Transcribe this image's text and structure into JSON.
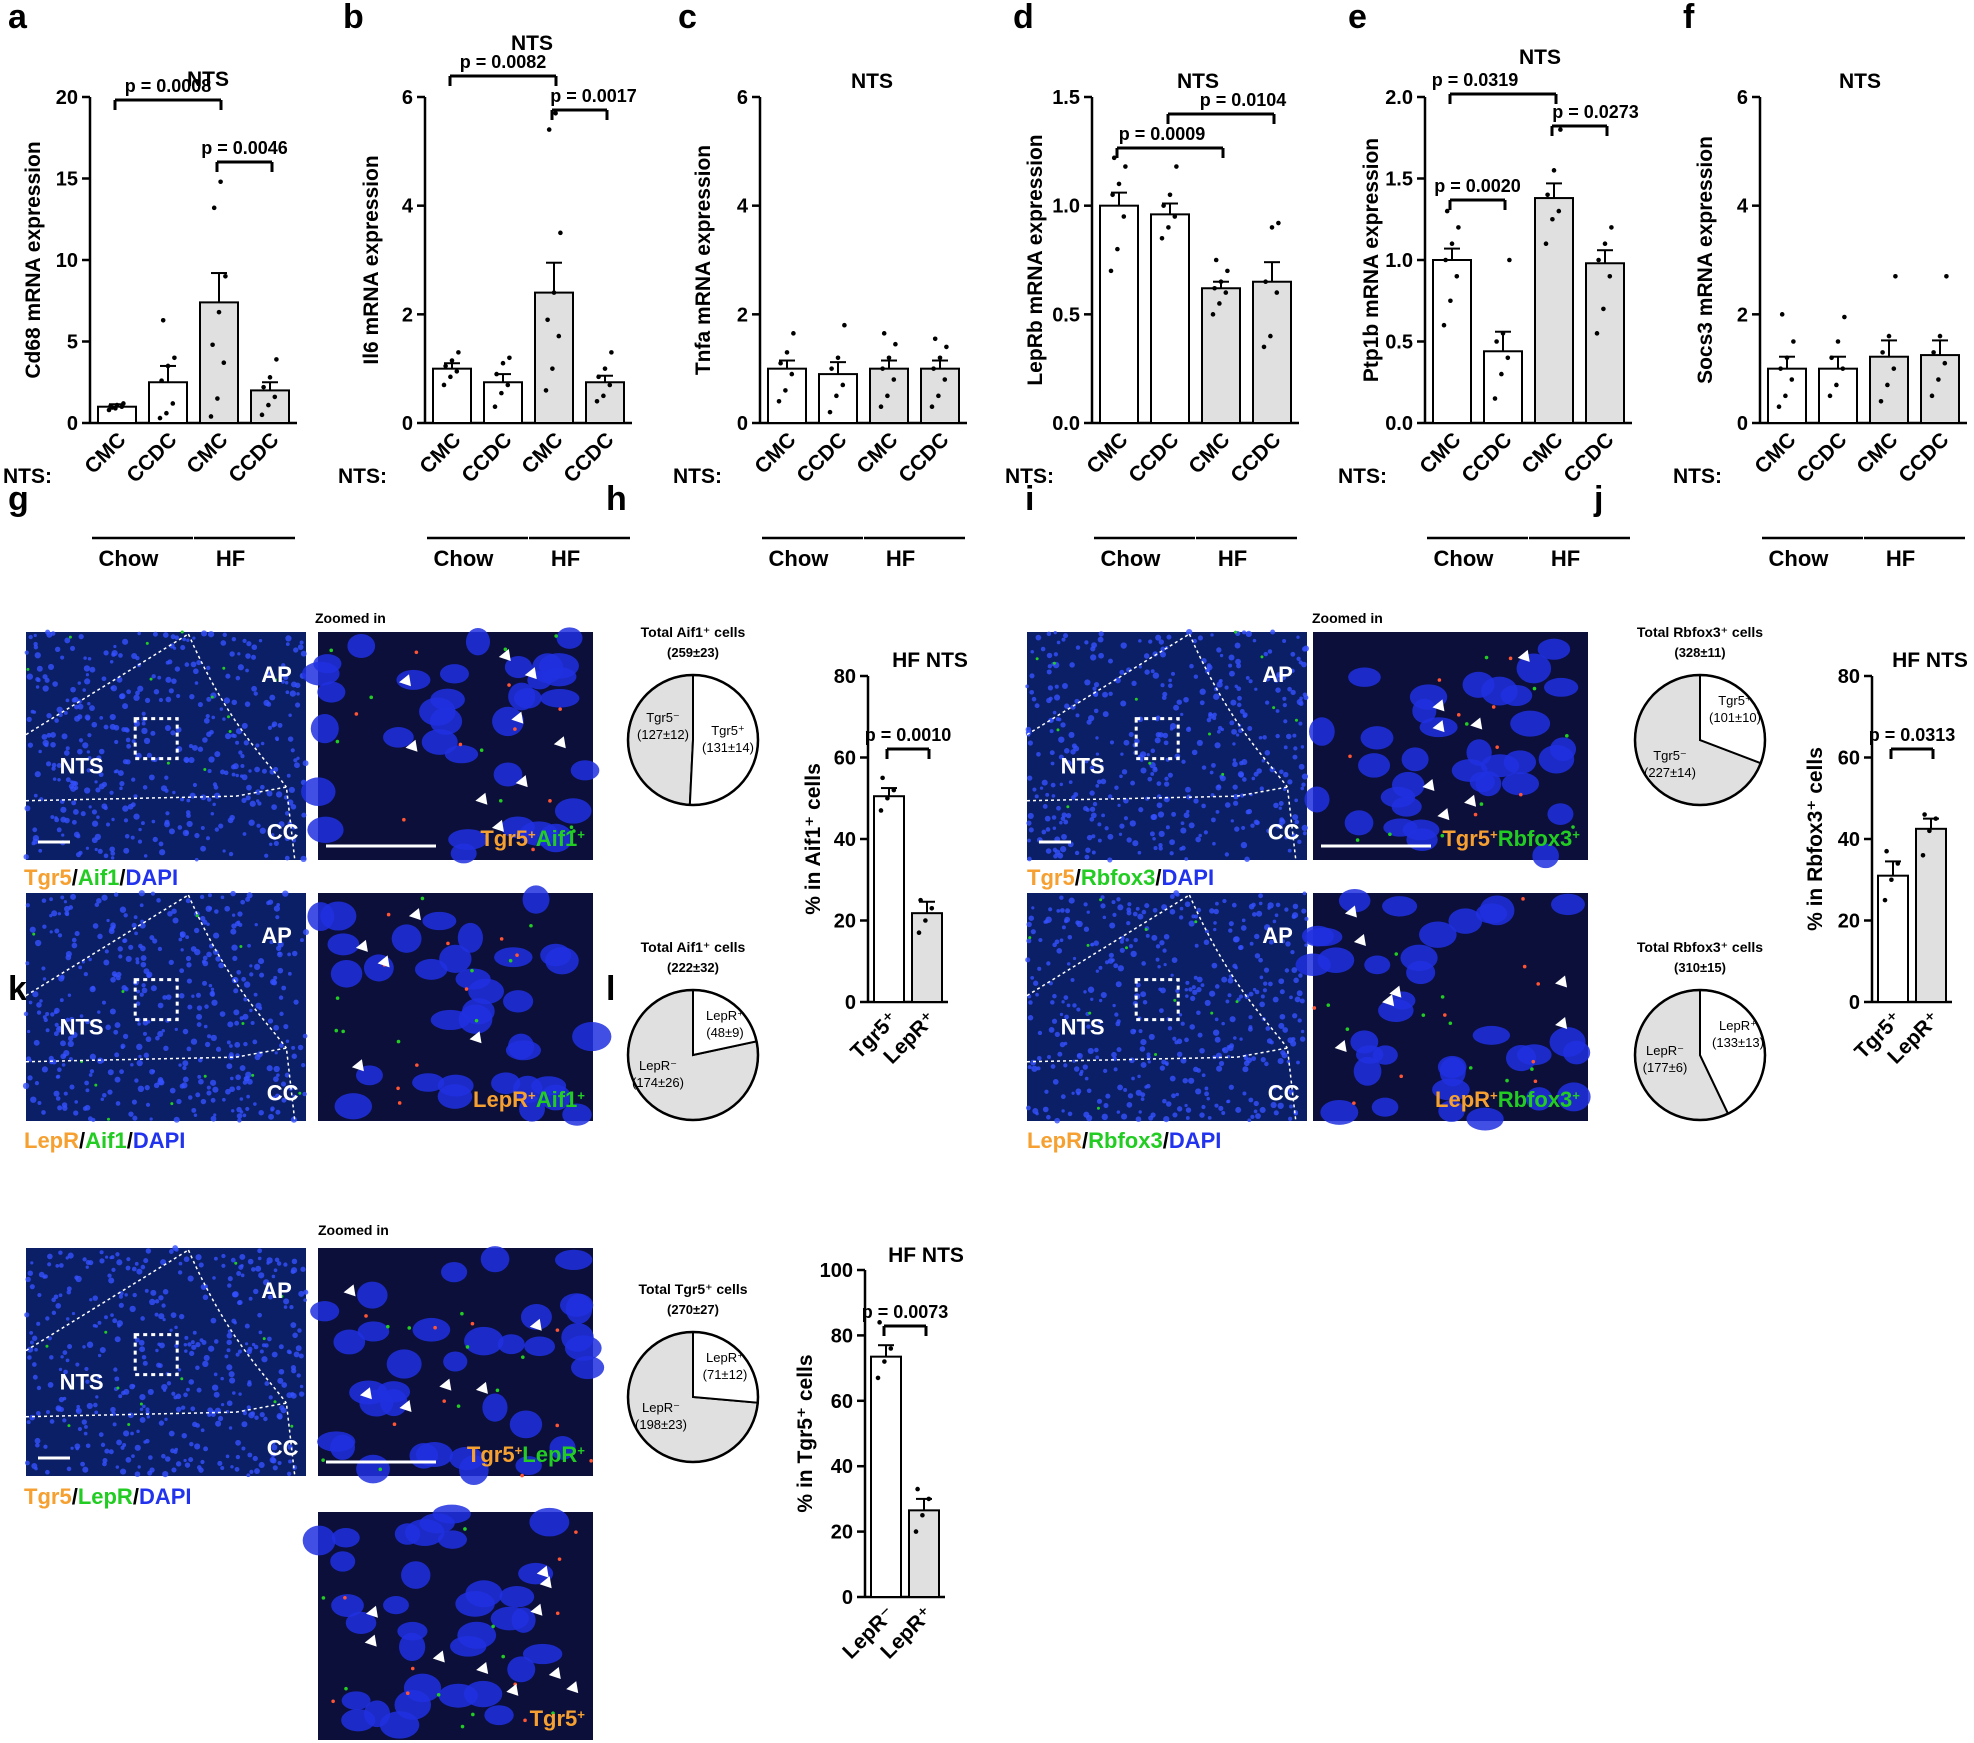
{
  "colors": {
    "cmc_bar": "#ffffff",
    "ccdc_bar": "#e0e0e0",
    "tgr5": "#f5a030",
    "aif1": "#22cc22",
    "dapi": "#2233ee",
    "micro_bg": "#0a1f66"
  },
  "row_label": "NTS:",
  "groups": [
    "Chow",
    "HF"
  ],
  "panel_letters": [
    "a",
    "b",
    "c",
    "d",
    "e",
    "f",
    "g",
    "h",
    "i",
    "j",
    "k",
    "l"
  ],
  "chart_data": [
    {
      "id": "a",
      "type": "bar",
      "title": "NTS",
      "ylabel": "Cd68 mRNA expression",
      "categories": [
        "CMC",
        "CCDC",
        "CMC",
        "CCDC"
      ],
      "groups": [
        "Chow",
        "HF"
      ],
      "values": [
        1.0,
        2.5,
        7.4,
        2.0
      ],
      "errors": [
        0.15,
        1.0,
        1.8,
        0.5
      ],
      "ylim": [
        0,
        20
      ],
      "yticks": [
        "0",
        "5",
        "10",
        "15",
        "20"
      ],
      "points": [
        [
          0.8,
          0.9,
          1.0,
          1.05,
          1.1,
          1.2,
          0.95
        ],
        [
          0.3,
          0.6,
          1.2,
          2.6,
          3.5,
          4.0,
          6.3
        ],
        [
          0.4,
          1.5,
          3.7,
          4.8,
          6.8,
          9.0,
          13.2,
          14.8
        ],
        [
          0.5,
          1.1,
          1.6,
          2.2,
          2.8,
          3.9
        ]
      ],
      "comparisons": [
        {
          "from": 0,
          "to": 2,
          "label": "p = 0.0008"
        },
        {
          "from": 2,
          "to": 3,
          "label": "p = 0.0046"
        }
      ]
    },
    {
      "id": "b",
      "type": "bar",
      "title": "NTS",
      "ylabel": "Il6 mRNA expression",
      "categories": [
        "CMC",
        "CCDC",
        "CMC",
        "CCDC"
      ],
      "groups": [
        "Chow",
        "HF"
      ],
      "values": [
        1.0,
        0.75,
        2.4,
        0.75
      ],
      "errors": [
        0.1,
        0.15,
        0.55,
        0.12
      ],
      "ylim": [
        0,
        6
      ],
      "yticks": [
        "0",
        "2",
        "4",
        "6"
      ],
      "points": [
        [
          0.7,
          0.85,
          0.95,
          1.05,
          1.15,
          1.3
        ],
        [
          0.3,
          0.55,
          0.7,
          0.9,
          1.1,
          1.2
        ],
        [
          0.6,
          1.0,
          1.6,
          1.9,
          2.4,
          3.5,
          5.4,
          5.7
        ],
        [
          0.4,
          0.5,
          0.7,
          0.85,
          1.0,
          1.3
        ]
      ],
      "comparisons": [
        {
          "from": 0,
          "to": 2,
          "label": "p = 0.0082"
        },
        {
          "from": 2,
          "to": 3,
          "label": "p = 0.0017"
        }
      ]
    },
    {
      "id": "c",
      "type": "bar",
      "title": "NTS",
      "ylabel": "Tnfa mRNA expression",
      "categories": [
        "CMC",
        "CCDC",
        "CMC",
        "CCDC"
      ],
      "groups": [
        "Chow",
        "HF"
      ],
      "values": [
        1.0,
        0.9,
        1.0,
        1.0
      ],
      "errors": [
        0.15,
        0.22,
        0.15,
        0.15
      ],
      "ylim": [
        0,
        6
      ],
      "yticks": [
        "0",
        "2",
        "4",
        "6"
      ],
      "points": [
        [
          0.4,
          0.6,
          0.9,
          1.1,
          1.3,
          1.65
        ],
        [
          0.2,
          0.5,
          0.7,
          1.0,
          1.2,
          1.8
        ],
        [
          0.3,
          0.5,
          0.8,
          1.0,
          1.2,
          1.45,
          1.65
        ],
        [
          0.3,
          0.5,
          0.8,
          1.0,
          1.2,
          1.4,
          1.55
        ]
      ],
      "comparisons": []
    },
    {
      "id": "d",
      "type": "bar",
      "title": "NTS",
      "ylabel": "LepRb mRNA expression",
      "categories": [
        "CMC",
        "CCDC",
        "CMC",
        "CCDC"
      ],
      "groups": [
        "Chow",
        "HF"
      ],
      "values": [
        1.0,
        0.96,
        0.62,
        0.65
      ],
      "errors": [
        0.06,
        0.05,
        0.03,
        0.09
      ],
      "ylim": [
        0,
        1.5
      ],
      "yticks": [
        "0.0",
        "0.5",
        "1.0",
        "1.5"
      ],
      "points": [
        [
          0.7,
          0.8,
          0.95,
          1.05,
          1.1,
          1.18,
          1.22
        ],
        [
          0.85,
          0.9,
          0.95,
          1.0,
          1.05,
          1.18
        ],
        [
          0.5,
          0.55,
          0.6,
          0.62,
          0.65,
          0.7,
          0.75
        ],
        [
          0.35,
          0.4,
          0.6,
          0.65,
          0.9,
          0.92
        ]
      ],
      "comparisons": [
        {
          "from": 0,
          "to": 2,
          "label": "p = 0.0009"
        },
        {
          "from": 1,
          "to": 3,
          "label": "p = 0.0104"
        }
      ]
    },
    {
      "id": "e",
      "type": "bar",
      "title": "NTS",
      "ylabel": "Ptp1b mRNA expression",
      "categories": [
        "CMC",
        "CCDC",
        "CMC",
        "CCDC"
      ],
      "groups": [
        "Chow",
        "HF"
      ],
      "values": [
        1.0,
        0.44,
        1.38,
        0.98
      ],
      "errors": [
        0.07,
        0.12,
        0.09,
        0.08
      ],
      "ylim": [
        0,
        2.0
      ],
      "yticks": [
        "0.0",
        "0.5",
        "1.0",
        "1.5",
        "2.0"
      ],
      "points": [
        [
          0.6,
          0.75,
          0.9,
          1.0,
          1.1,
          1.2,
          1.3
        ],
        [
          0.15,
          0.3,
          0.4,
          0.5,
          0.55,
          1.0
        ],
        [
          1.1,
          1.25,
          1.3,
          1.4,
          1.55,
          1.8
        ],
        [
          0.55,
          0.7,
          0.9,
          1.0,
          1.1,
          1.2
        ]
      ],
      "comparisons": [
        {
          "from": 0,
          "to": 2,
          "label": "p = 0.0319"
        },
        {
          "from": 0,
          "to": 1,
          "label": "p = 0.0020"
        },
        {
          "from": 2,
          "to": 3,
          "label": "p = 0.0273"
        }
      ]
    },
    {
      "id": "f",
      "type": "bar",
      "title": "NTS",
      "ylabel": "Socs3 mRNA expression",
      "categories": [
        "CMC",
        "CCDC",
        "CMC",
        "CCDC"
      ],
      "groups": [
        "Chow",
        "HF"
      ],
      "values": [
        1.0,
        1.0,
        1.22,
        1.25
      ],
      "errors": [
        0.22,
        0.22,
        0.3,
        0.27
      ],
      "ylim": [
        0,
        6
      ],
      "yticks": [
        "0",
        "2",
        "4",
        "6"
      ],
      "points": [
        [
          0.3,
          0.5,
          0.8,
          1.0,
          1.2,
          1.5,
          2.0
        ],
        [
          0.5,
          0.7,
          1.0,
          1.2,
          1.5,
          1.95
        ],
        [
          0.4,
          0.7,
          1.0,
          1.3,
          1.6,
          2.7
        ],
        [
          0.5,
          0.8,
          1.1,
          1.3,
          1.6,
          2.7
        ]
      ],
      "comparisons": []
    },
    {
      "id": "h_bar",
      "type": "bar",
      "title": "HF NTS",
      "ylabel": "% in Aif1⁺ cells",
      "categories": [
        "Tgr5⁺",
        "LepR⁺"
      ],
      "values": [
        50.5,
        21.8
      ],
      "errors": [
        2.0,
        2.8
      ],
      "ylim": [
        0,
        80
      ],
      "yticks": [
        "0",
        "20",
        "40",
        "60",
        "80"
      ],
      "points": [
        [
          47,
          50,
          52,
          55
        ],
        [
          17,
          20,
          23,
          25
        ]
      ],
      "comparisons": [
        {
          "from": 0,
          "to": 1,
          "label": "p = 0.0010"
        }
      ]
    },
    {
      "id": "j_bar",
      "type": "bar",
      "title": "HF NTS",
      "ylabel": "% in Rbfox3⁺ cells",
      "categories": [
        "Tgr5⁺",
        "LepR⁺"
      ],
      "values": [
        31,
        42.5
      ],
      "errors": [
        3.5,
        2.5
      ],
      "ylim": [
        0,
        80
      ],
      "yticks": [
        "0",
        "20",
        "40",
        "60",
        "80"
      ],
      "points": [
        [
          25,
          30,
          34,
          37
        ],
        [
          36,
          42,
          45,
          46
        ]
      ],
      "comparisons": [
        {
          "from": 0,
          "to": 1,
          "label": "p = 0.0313"
        }
      ]
    },
    {
      "id": "l_bar",
      "type": "bar",
      "title": "HF NTS",
      "ylabel": "% in Tgr5⁺ cells",
      "categories": [
        "LepR⁻",
        "LepR⁺"
      ],
      "values": [
        73.5,
        26.5
      ],
      "errors": [
        3.5,
        3.5
      ],
      "ylim": [
        0,
        100
      ],
      "yticks": [
        "0",
        "20",
        "40",
        "60",
        "80",
        "100"
      ],
      "points": [
        [
          67,
          72,
          76,
          84
        ],
        [
          20,
          25,
          30,
          33
        ]
      ],
      "comparisons": [
        {
          "from": 0,
          "to": 1,
          "label": "p = 0.0073"
        }
      ]
    },
    {
      "id": "h_pie1",
      "type": "pie",
      "title": "Total Aif1⁺ cells",
      "subtitle": "(259±23)",
      "slices": [
        {
          "label": "Tgr5⁻",
          "sub": "(127±12)",
          "value": 127
        },
        {
          "label": "Tgr5⁺",
          "sub": "(131±14)",
          "value": 131
        }
      ]
    },
    {
      "id": "h_pie2",
      "type": "pie",
      "title": "Total Aif1⁺ cells",
      "subtitle": "(222±32)",
      "slices": [
        {
          "label": "LepR⁻",
          "sub": "(174±26)",
          "value": 174
        },
        {
          "label": "LepR⁺",
          "sub": "(48±9)",
          "value": 48
        }
      ]
    },
    {
      "id": "j_pie1",
      "type": "pie",
      "title": "Total Rbfox3⁺ cells",
      "subtitle": "(328±11)",
      "slices": [
        {
          "label": "Tgr5⁻",
          "sub": "(227±14)",
          "value": 227
        },
        {
          "label": "Tgr5⁺",
          "sub": "(101±10)",
          "value": 101
        }
      ]
    },
    {
      "id": "j_pie2",
      "type": "pie",
      "title": "Total Rbfox3⁺ cells",
      "subtitle": "(310±15)",
      "slices": [
        {
          "label": "LepR⁻",
          "sub": "(177±6)",
          "value": 177
        },
        {
          "label": "LepR⁺",
          "sub": "(133±13)",
          "value": 133
        }
      ]
    },
    {
      "id": "l_pie",
      "type": "pie",
      "title": "Total Tgr5⁺ cells",
      "subtitle": "(270±27)",
      "slices": [
        {
          "label": "LepR⁻",
          "sub": "(198±23)",
          "value": 198
        },
        {
          "label": "LepR⁺",
          "sub": "(71±12)",
          "value": 71
        }
      ]
    }
  ],
  "micrographs": {
    "zoomed_label": "Zoomed in",
    "region_labels": {
      "ap": "AP",
      "nts": "NTS",
      "cc": "CC"
    },
    "g": {
      "top_caption": [
        {
          "t": "Tgr5",
          "c": "#f5a030"
        },
        {
          "t": "/",
          "c": "#000"
        },
        {
          "t": "Aif1",
          "c": "#22cc22"
        },
        {
          "t": "/",
          "c": "#000"
        },
        {
          "t": "DAPI",
          "c": "#2233ee"
        }
      ],
      "bottom_caption": [
        {
          "t": "LepR",
          "c": "#f5a030"
        },
        {
          "t": "/",
          "c": "#000"
        },
        {
          "t": "Aif1",
          "c": "#22cc22"
        },
        {
          "t": "/",
          "c": "#000"
        },
        {
          "t": "DAPI",
          "c": "#2233ee"
        }
      ],
      "zoom_top_tag": [
        {
          "t": "Tgr5",
          "c": "#f5a030"
        },
        {
          "t": "+",
          "c": "#f5a030",
          "sup": true
        },
        {
          "t": "Aif1",
          "c": "#22cc22"
        },
        {
          "t": "+",
          "c": "#22cc22",
          "sup": true
        }
      ],
      "zoom_bottom_tag": [
        {
          "t": "LepR",
          "c": "#f5a030"
        },
        {
          "t": "+",
          "c": "#f5a030",
          "sup": true
        },
        {
          "t": "Aif1",
          "c": "#22cc22"
        },
        {
          "t": "+",
          "c": "#22cc22",
          "sup": true
        }
      ]
    },
    "i": {
      "top_caption": [
        {
          "t": "Tgr5",
          "c": "#f5a030"
        },
        {
          "t": "/",
          "c": "#000"
        },
        {
          "t": "Rbfox3",
          "c": "#22cc22"
        },
        {
          "t": "/",
          "c": "#000"
        },
        {
          "t": "DAPI",
          "c": "#2233ee"
        }
      ],
      "bottom_caption": [
        {
          "t": "LepR",
          "c": "#f5a030"
        },
        {
          "t": "/",
          "c": "#000"
        },
        {
          "t": "Rbfox3",
          "c": "#22cc22"
        },
        {
          "t": "/",
          "c": "#000"
        },
        {
          "t": "DAPI",
          "c": "#2233ee"
        }
      ],
      "zoom_top_tag": [
        {
          "t": "Tgr5",
          "c": "#f5a030"
        },
        {
          "t": "+",
          "c": "#f5a030",
          "sup": true
        },
        {
          "t": "Rbfox3",
          "c": "#22cc22"
        },
        {
          "t": "+",
          "c": "#22cc22",
          "sup": true
        }
      ],
      "zoom_bottom_tag": [
        {
          "t": "LepR",
          "c": "#f5a030"
        },
        {
          "t": "+",
          "c": "#f5a030",
          "sup": true
        },
        {
          "t": "Rbfox3",
          "c": "#22cc22"
        },
        {
          "t": "+",
          "c": "#22cc22",
          "sup": true
        }
      ]
    },
    "k": {
      "top_caption": [
        {
          "t": "Tgr5",
          "c": "#f5a030"
        },
        {
          "t": "/",
          "c": "#000"
        },
        {
          "t": "LepR",
          "c": "#22cc22"
        },
        {
          "t": "/",
          "c": "#000"
        },
        {
          "t": "DAPI",
          "c": "#2233ee"
        }
      ],
      "zoom_top_tag": [
        {
          "t": "Tgr5",
          "c": "#f5a030"
        },
        {
          "t": "+",
          "c": "#f5a030",
          "sup": true
        },
        {
          "t": "LepR",
          "c": "#22cc22"
        },
        {
          "t": "+",
          "c": "#22cc22",
          "sup": true
        }
      ],
      "zoom_bottom_tag": [
        {
          "t": "Tgr5",
          "c": "#f5a030"
        },
        {
          "t": "+",
          "c": "#f5a030",
          "sup": true
        }
      ]
    }
  }
}
